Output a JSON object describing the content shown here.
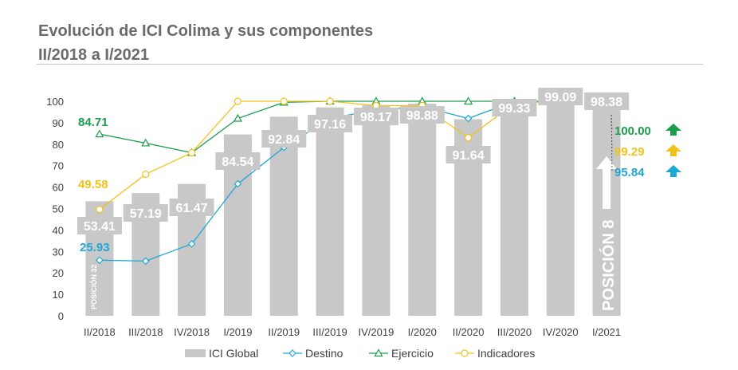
{
  "title": {
    "line1": "Evolución de ICI Colima y sus componentes",
    "line2": "II/2018 a I/2021"
  },
  "chart_data": {
    "type": "bar",
    "categories": [
      "II/2018",
      "III/2018",
      "IV/2018",
      "I/2019",
      "II/2019",
      "III/2019",
      "IV/2019",
      "I/2020",
      "II/2020",
      "III/2020",
      "IV/2020",
      "I/2021"
    ],
    "ylim": [
      0,
      100
    ],
    "yticks": [
      "0",
      "10",
      "20",
      "30",
      "40",
      "50",
      "60",
      "70",
      "80",
      "90",
      "100"
    ],
    "grid": false,
    "legend_position": "bottom",
    "series": [
      {
        "name": "ICI Global",
        "type": "bar",
        "color": "#c8c8c8",
        "values": [
          53.41,
          57.19,
          61.47,
          84.54,
          92.84,
          97.16,
          98.17,
          98.88,
          91.64,
          99.33,
          99.09,
          98.38
        ],
        "labels": [
          "53.41",
          "57.19",
          "61.47",
          "84.54",
          "92.84",
          "97.16",
          "98.17",
          "98.88",
          "91.64",
          "99.33",
          "99.09",
          "98.38"
        ]
      },
      {
        "name": "Destino",
        "type": "line",
        "color": "#1fa8d6",
        "values": [
          25.93,
          25.5,
          33.5,
          61.5,
          78.5,
          92,
          96,
          97.5,
          92,
          100,
          100,
          95.84
        ]
      },
      {
        "name": "Ejercicio",
        "type": "line",
        "color": "#1a9e4b",
        "values": [
          84.71,
          80.5,
          76,
          92,
          99.5,
          100,
          100,
          100,
          100,
          100,
          100,
          100
        ]
      },
      {
        "name": "Indicadores",
        "type": "line",
        "color": "#f2c21b",
        "values": [
          49.58,
          66,
          76,
          100,
          100,
          100,
          98,
          98,
          83,
          99,
          100,
          99.29
        ]
      }
    ],
    "annotations": {
      "ejercicio_start": "84.71",
      "indicadores_start": "49.58",
      "destino_start": "25.93",
      "ejercicio_end": "100.00",
      "indicadores_end": "99.29",
      "destino_end": "95.84",
      "position_start": "POSICIÓN 32",
      "position_end": "POSICIÓN 8"
    }
  }
}
